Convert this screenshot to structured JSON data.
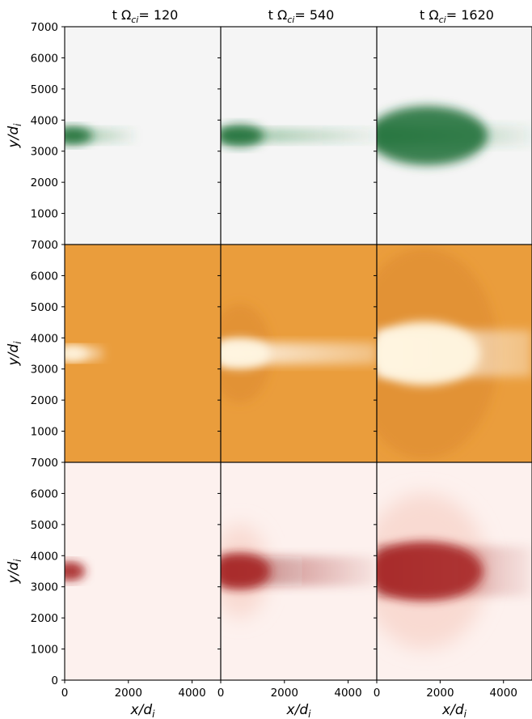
{
  "figure": {
    "columns": [
      {
        "title_prefix": "t Ω",
        "title_sub": "ci",
        "title_suffix": "= 120",
        "time": 120
      },
      {
        "title_prefix": "t Ω",
        "title_sub": "ci",
        "title_suffix": "= 540",
        "time": 540
      },
      {
        "title_prefix": "t Ω",
        "title_sub": "ci",
        "title_suffix": "= 1620",
        "time": 1620
      }
    ],
    "ylabel": {
      "var": "y",
      "den": "d",
      "sub": "i"
    },
    "xlabel": {
      "var": "x",
      "den": "d",
      "sub": "i"
    }
  },
  "chart_data": {
    "type": "heatmap",
    "layout": "3x3 grid of panels (rows = fields, columns = times)",
    "xlim": [
      0,
      4900
    ],
    "ylim": [
      0,
      7000
    ],
    "xticks": [
      "0",
      "2000",
      "4000"
    ],
    "yticks": [
      "0",
      "1000",
      "2000",
      "3000",
      "4000",
      "5000",
      "6000",
      "7000"
    ],
    "rows": [
      {
        "colormap": "Greens",
        "background": "#f5f5f5",
        "feature": "#2d8a45",
        "highlight": "#1b6b31"
      },
      {
        "colormap": "Oranges",
        "background": "#ea9d3c",
        "feature": "#ffffff",
        "highlight": "#fff5e0"
      },
      {
        "colormap": "Reds",
        "background": "#fdf1ee",
        "feature": "#8c1313",
        "highlight": "#a51c1c"
      }
    ],
    "structures": [
      [
        {
          "x_center": 500,
          "y_center": 3500,
          "half_height": 400,
          "tail_end": 2200
        },
        {
          "x_center": 600,
          "y_center": 3500,
          "half_height": 500,
          "tail_end": 4900
        },
        {
          "x_center": 1600,
          "y_center": 3500,
          "half_height": 1000,
          "tail_end": 4900
        }
      ],
      [
        {
          "x_center": 200,
          "y_center": 3500,
          "half_height": 600,
          "tail_end": 1200
        },
        {
          "x_center": 600,
          "y_center": 3500,
          "half_height": 1600,
          "tail_end": 4900
        },
        {
          "x_center": 1500,
          "y_center": 3500,
          "half_height": 3400,
          "tail_end": 4900
        }
      ],
      [
        {
          "x_center": 150,
          "y_center": 3500,
          "half_height": 500,
          "tail_end": 500
        },
        {
          "x_center": 600,
          "y_center": 3500,
          "half_height": 1500,
          "tail_end": 4900
        },
        {
          "x_center": 1500,
          "y_center": 3500,
          "half_height": 2500,
          "tail_end": 4900
        }
      ]
    ]
  }
}
